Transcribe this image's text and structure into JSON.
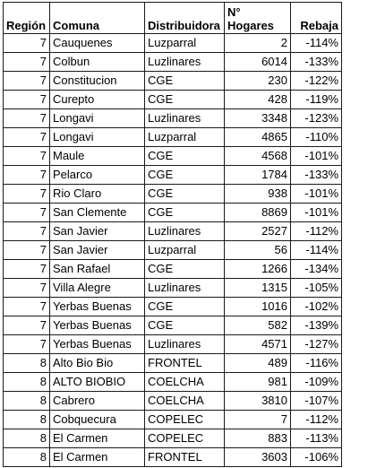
{
  "columns": {
    "region": "Región",
    "comuna": "Comuna",
    "distribuidora": "Distribuidora",
    "hogares_line1": "N°",
    "hogares_line2": "Hogares",
    "rebaja": "Rebaja"
  },
  "rows": [
    {
      "region": "7",
      "comuna": "Cauquenes",
      "distribuidora": "Luzparral",
      "hogares": "2",
      "rebaja": "-114%"
    },
    {
      "region": "7",
      "comuna": "Colbun",
      "distribuidora": "Luzlinares",
      "hogares": "6014",
      "rebaja": "-133%"
    },
    {
      "region": "7",
      "comuna": "Constitucion",
      "distribuidora": "CGE",
      "hogares": "230",
      "rebaja": "-122%"
    },
    {
      "region": "7",
      "comuna": "Curepto",
      "distribuidora": "CGE",
      "hogares": "428",
      "rebaja": "-119%"
    },
    {
      "region": "7",
      "comuna": "Longavi",
      "distribuidora": "Luzlinares",
      "hogares": "3348",
      "rebaja": "-123%"
    },
    {
      "region": "7",
      "comuna": "Longavi",
      "distribuidora": "Luzparral",
      "hogares": "4865",
      "rebaja": "-110%"
    },
    {
      "region": "7",
      "comuna": "Maule",
      "distribuidora": "CGE",
      "hogares": "4568",
      "rebaja": "-101%"
    },
    {
      "region": "7",
      "comuna": "Pelarco",
      "distribuidora": "CGE",
      "hogares": "1784",
      "rebaja": "-133%"
    },
    {
      "region": "7",
      "comuna": "Rio Claro",
      "distribuidora": "CGE",
      "hogares": "938",
      "rebaja": "-101%"
    },
    {
      "region": "7",
      "comuna": "San Clemente",
      "distribuidora": "CGE",
      "hogares": "8869",
      "rebaja": "-101%"
    },
    {
      "region": "7",
      "comuna": "San Javier",
      "distribuidora": "Luzlinares",
      "hogares": "2527",
      "rebaja": "-112%"
    },
    {
      "region": "7",
      "comuna": "San Javier",
      "distribuidora": "Luzparral",
      "hogares": "56",
      "rebaja": "-114%"
    },
    {
      "region": "7",
      "comuna": "San Rafael",
      "distribuidora": "CGE",
      "hogares": "1266",
      "rebaja": "-134%"
    },
    {
      "region": "7",
      "comuna": "Villa Alegre",
      "distribuidora": "Luzlinares",
      "hogares": "1315",
      "rebaja": "-105%"
    },
    {
      "region": "7",
      "comuna": "Yerbas Buenas",
      "distribuidora": "CGE",
      "hogares": "1016",
      "rebaja": "-102%"
    },
    {
      "region": "7",
      "comuna": "Yerbas Buenas",
      "distribuidora": "CGE",
      "hogares": "582",
      "rebaja": "-139%"
    },
    {
      "region": "7",
      "comuna": "Yerbas Buenas",
      "distribuidora": "Luzlinares",
      "hogares": "4571",
      "rebaja": "-127%"
    },
    {
      "region": "8",
      "comuna": "Alto Bio Bio",
      "distribuidora": "FRONTEL",
      "hogares": "489",
      "rebaja": "-116%"
    },
    {
      "region": "8",
      "comuna": "ALTO BIOBIO",
      "distribuidora": "COELCHA",
      "hogares": "981",
      "rebaja": "-109%"
    },
    {
      "region": "8",
      "comuna": "Cabrero",
      "distribuidora": "COELCHA",
      "hogares": "3810",
      "rebaja": "-107%"
    },
    {
      "region": "8",
      "comuna": "Cobquecura",
      "distribuidora": "COPELEC",
      "hogares": "7",
      "rebaja": "-112%"
    },
    {
      "region": "8",
      "comuna": "El Carmen",
      "distribuidora": "COPELEC",
      "hogares": "883",
      "rebaja": "-113%"
    },
    {
      "region": "8",
      "comuna": "El Carmen",
      "distribuidora": "FRONTEL",
      "hogares": "3603",
      "rebaja": "-106%"
    }
  ]
}
